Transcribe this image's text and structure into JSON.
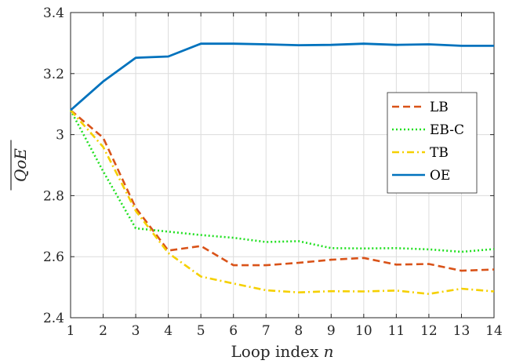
{
  "chart_data": {
    "type": "line",
    "xlabel": "Loop index",
    "xlabel_var": "n",
    "ylabel": "QoE",
    "xlim": [
      1,
      14
    ],
    "ylim": [
      2.4,
      3.4
    ],
    "xticks": [
      "1",
      "2",
      "3",
      "4",
      "5",
      "6",
      "7",
      "8",
      "9",
      "10",
      "11",
      "12",
      "13",
      "14"
    ],
    "yticks": [
      "2.4",
      "2.6",
      "2.8",
      "3",
      "3.2",
      "3.4"
    ],
    "grid": true,
    "legend_position": "right",
    "x": [
      1,
      2,
      3,
      4,
      5,
      6,
      7,
      8,
      9,
      10,
      11,
      12,
      13,
      14
    ],
    "series": [
      {
        "name": "LB",
        "color": "#D95319",
        "dash": "dashed",
        "values": [
          3.08,
          2.99,
          2.76,
          2.62,
          2.635,
          2.572,
          2.572,
          2.58,
          2.59,
          2.596,
          2.574,
          2.576,
          2.554,
          2.558
        ]
      },
      {
        "name": "EB-C",
        "color": "#22E022",
        "dash": "dotted",
        "values": [
          3.08,
          2.88,
          2.693,
          2.682,
          2.671,
          2.662,
          2.648,
          2.651,
          2.628,
          2.627,
          2.628,
          2.624,
          2.616,
          2.625
        ]
      },
      {
        "name": "TB",
        "color": "#F5D000",
        "dash": "dashdot",
        "values": [
          3.08,
          2.96,
          2.75,
          2.612,
          2.535,
          2.512,
          2.49,
          2.483,
          2.487,
          2.486,
          2.489,
          2.478,
          2.495,
          2.486
        ]
      },
      {
        "name": "OE",
        "color": "#0072BD",
        "dash": "solid",
        "values": [
          3.08,
          3.174,
          3.252,
          3.256,
          3.298,
          3.298,
          3.296,
          3.293,
          3.294,
          3.298,
          3.294,
          3.296,
          3.291,
          3.291
        ]
      }
    ]
  }
}
